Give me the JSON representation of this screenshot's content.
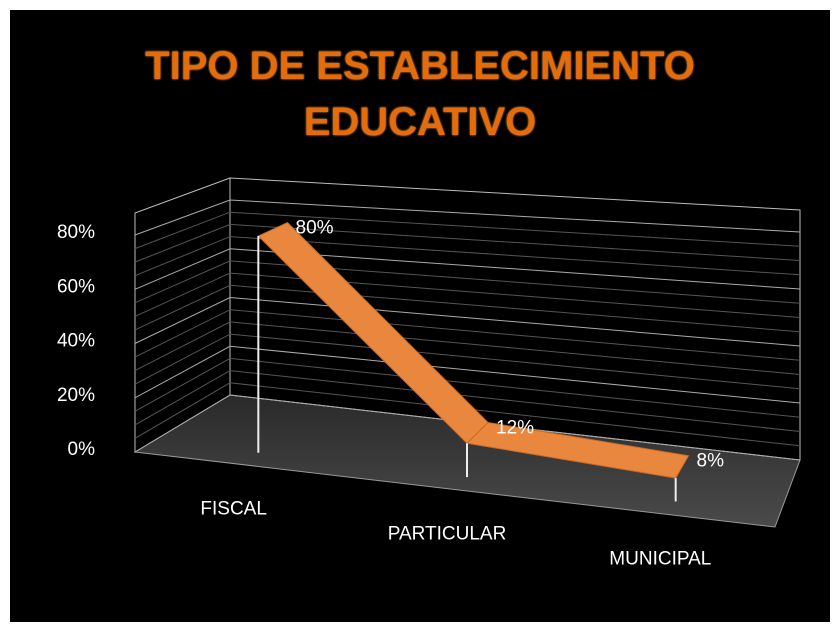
{
  "chart_data": {
    "type": "line3d",
    "title": "TIPO DE ESTABLECIMIENTO EDUCATIVO",
    "categories": [
      "FISCAL",
      "PARTICULAR",
      "MUNICIPAL"
    ],
    "values": [
      80,
      12,
      8
    ],
    "value_labels": [
      "80%",
      "12%",
      "8%"
    ],
    "color": "#e9873f",
    "ylim": [
      0,
      80
    ],
    "yticks": [
      {
        "value": 0,
        "label": "0%"
      },
      {
        "value": 20,
        "label": "20%"
      },
      {
        "value": 40,
        "label": "40%"
      },
      {
        "value": 60,
        "label": "60%"
      },
      {
        "value": 80,
        "label": "80%"
      }
    ],
    "grid": true
  }
}
